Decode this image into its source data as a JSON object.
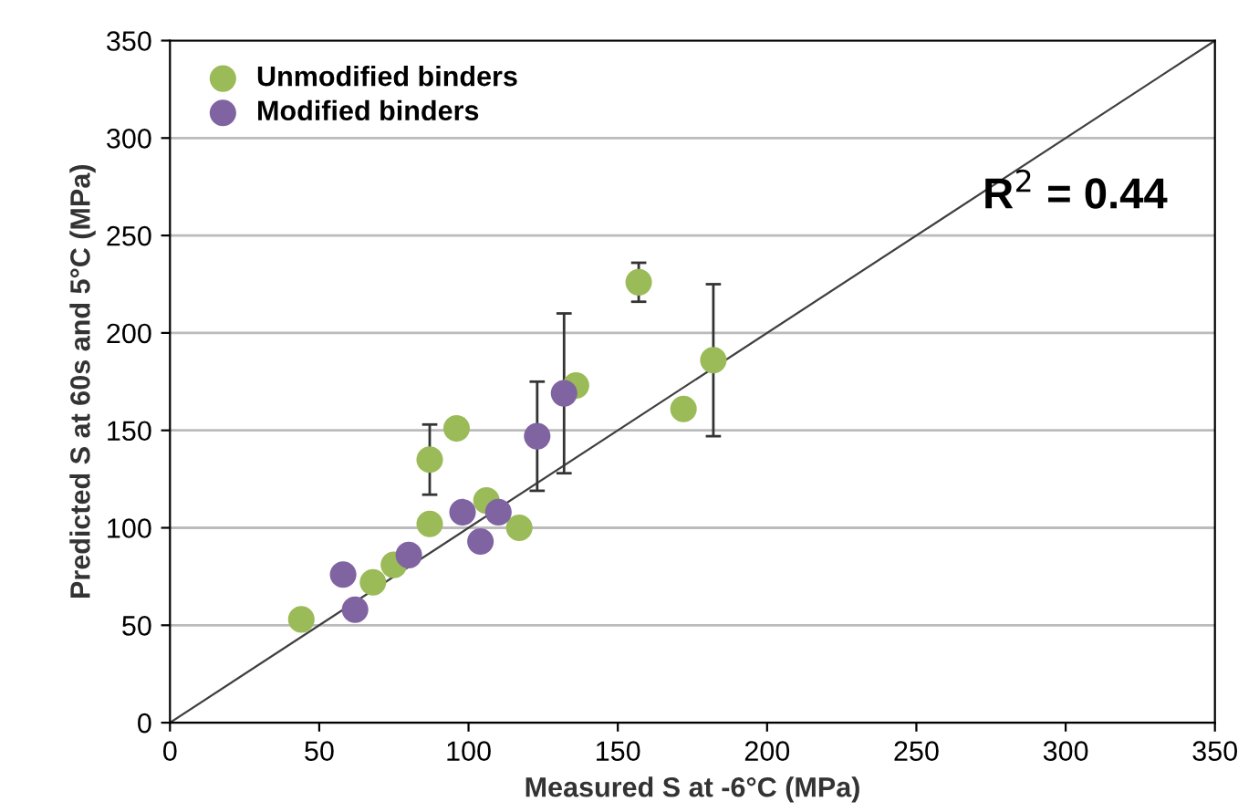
{
  "chart_data": {
    "type": "scatter",
    "xlabel": "Measured S at -6°C (MPa)",
    "ylabel": "Predicted S at 60s and 5°C (MPa)",
    "xlim": [
      0,
      350
    ],
    "ylim": [
      0,
      350
    ],
    "xticks": [
      0,
      50,
      100,
      150,
      200,
      250,
      300,
      350
    ],
    "yticks": [
      0,
      50,
      100,
      150,
      200,
      250,
      300,
      350
    ],
    "grid": "y",
    "legend": "top left",
    "marker": "circle",
    "annotations": [
      "R$^{2}$ = 0.44"
    ],
    "series": [
      {
        "name": "Unmodified binders",
        "color": "#9bbb59",
        "x": [
          44,
          68,
          75,
          87,
          87,
          96,
          106,
          117,
          136,
          157,
          172,
          182
        ],
        "values": [
          53,
          72,
          81,
          102,
          135,
          151,
          114,
          100,
          173,
          226,
          161,
          186
        ],
        "errors": [
          null,
          null,
          null,
          null,
          [
            117,
            153
          ],
          null,
          null,
          null,
          null,
          [
            216,
            236
          ],
          null,
          [
            147,
            225
          ]
        ]
      },
      {
        "name": "Modified binders",
        "color": "#8064a2",
        "x": [
          58,
          62,
          80,
          98,
          104,
          110,
          123,
          132
        ],
        "values": [
          76,
          58,
          86,
          108,
          93,
          108,
          147,
          169
        ],
        "errors": [
          null,
          null,
          null,
          null,
          null,
          null,
          [
            119,
            175
          ],
          [
            128,
            210
          ]
        ]
      },
      {
        "type": "line",
        "color": "#404040",
        "x": [
          0,
          350
        ],
        "values": [
          0,
          350
        ],
        "marker": "none"
      }
    ]
  }
}
